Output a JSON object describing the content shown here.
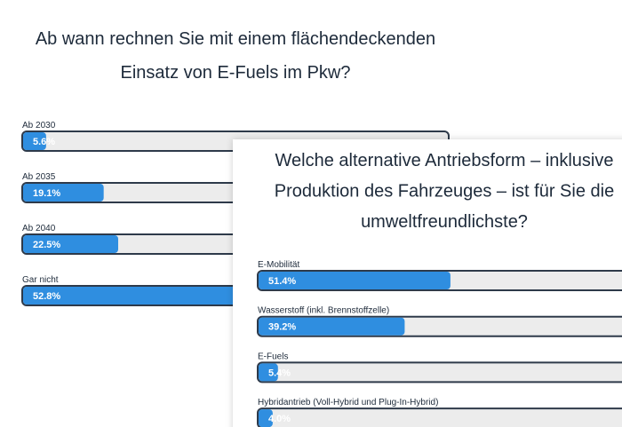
{
  "chart_data": [
    {
      "type": "bar",
      "orientation": "horizontal",
      "title": [
        "Ab wann rechnen Sie mit einem flächendeckenden",
        "Einsatz von E-Fuels im Pkw?"
      ],
      "categories": [
        "Ab 2030",
        "Ab 2035",
        "Ab 2040",
        "Gar nicht"
      ],
      "values": [
        5.6,
        19.1,
        22.5,
        52.8
      ],
      "value_labels": [
        "5.6%",
        "19.1%",
        "22.5%",
        "52.8%"
      ],
      "color": "#2f8ee0",
      "xlim": [
        0,
        100
      ]
    },
    {
      "type": "bar",
      "orientation": "horizontal",
      "title": [
        "Welche alternative Antriebsform – inklusive",
        "Produktion des Fahrzeuges – ist für Sie die",
        "umweltfreundlichste?"
      ],
      "categories": [
        "E-Mobilität",
        "Wasserstoff (inkl. Brennstoffzelle)",
        "E-Fuels",
        "Hybridantrieb (Voll-Hybrid und Plug-In-Hybrid)"
      ],
      "values": [
        51.4,
        39.2,
        5.4,
        4.0
      ],
      "value_labels": [
        "51.4%",
        "39.2%",
        "5.4%",
        "4.0%"
      ],
      "color": "#2f8ee0",
      "xlim": [
        0,
        100
      ]
    }
  ]
}
